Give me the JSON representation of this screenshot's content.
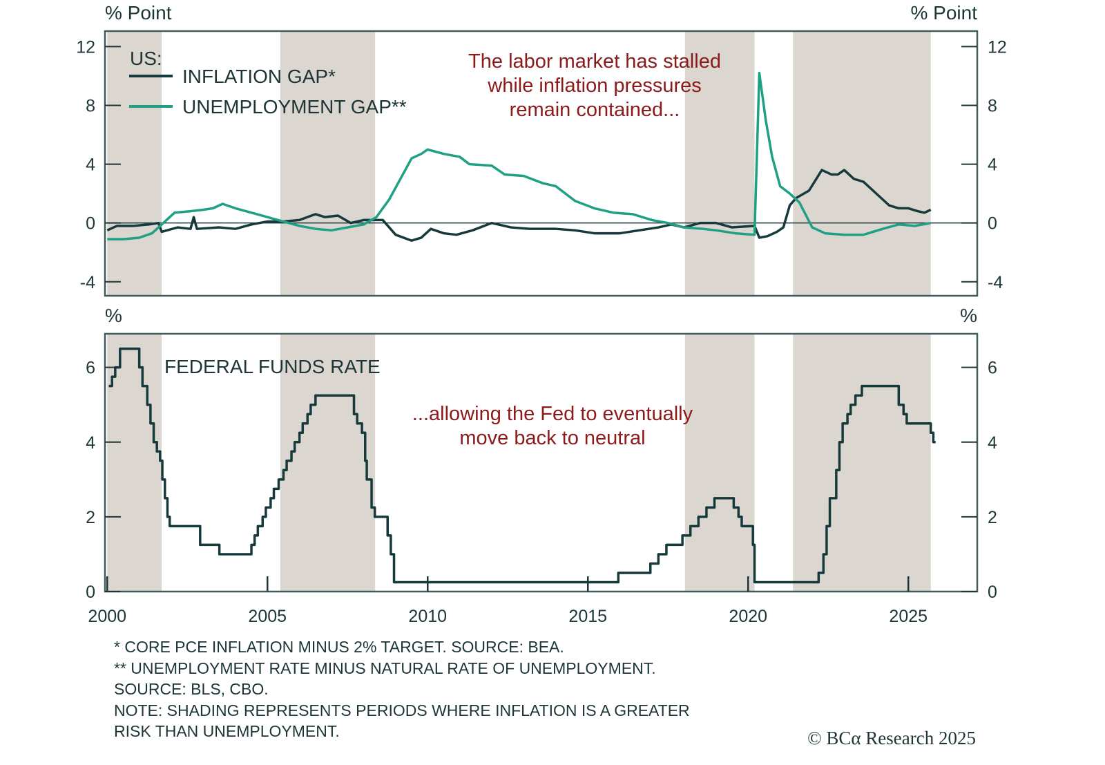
{
  "colors": {
    "inflation": "#163a3b",
    "unemployment": "#1fa084",
    "shade": "#dbd6cf",
    "annotation": "#8b1a1a",
    "frame": "#3f5b5b"
  },
  "chart_data": [
    {
      "type": "line",
      "panel": "top",
      "left_unit": "% Point",
      "right_unit": "% Point",
      "ylim": [
        -4.95,
        13.05
      ],
      "xlim": [
        1999.93,
        2027.15
      ],
      "yticks": [
        12,
        8,
        4,
        0,
        -4
      ],
      "ytick_labels": [
        "12",
        "8",
        "4",
        "0",
        "-4"
      ],
      "legend_title": "US:",
      "legend_placement": "top-left",
      "annotation": [
        "The labor market has stalled",
        "while inflation pressures",
        "remain contained..."
      ],
      "shaded_periods": [
        [
          2000.0,
          2001.7
        ],
        [
          2005.4,
          2008.36
        ],
        [
          2018.03,
          2020.2
        ],
        [
          2021.4,
          2025.7
        ]
      ],
      "series": [
        {
          "name": "INFLATION GAP*",
          "color_key": "inflation",
          "points": [
            [
              2000,
              -0.5
            ],
            [
              2000.3,
              -0.2
            ],
            [
              2000.8,
              -0.2
            ],
            [
              2001.3,
              -0.1
            ],
            [
              2001.6,
              0.0
            ],
            [
              2001.7,
              -0.6
            ],
            [
              2002.2,
              -0.3
            ],
            [
              2002.6,
              -0.4
            ],
            [
              2002.7,
              0.4
            ],
            [
              2002.8,
              -0.4
            ],
            [
              2003.5,
              -0.3
            ],
            [
              2004,
              -0.4
            ],
            [
              2004.5,
              -0.1
            ],
            [
              2005,
              0.1
            ],
            [
              2005.5,
              0.1
            ],
            [
              2006,
              0.2
            ],
            [
              2006.5,
              0.6
            ],
            [
              2006.8,
              0.4
            ],
            [
              2007.2,
              0.5
            ],
            [
              2007.6,
              0.0
            ],
            [
              2008,
              0.2
            ],
            [
              2008.6,
              0.2
            ],
            [
              2009,
              -0.8
            ],
            [
              2009.5,
              -1.2
            ],
            [
              2009.8,
              -1.0
            ],
            [
              2010.1,
              -0.4
            ],
            [
              2010.5,
              -0.7
            ],
            [
              2010.9,
              -0.8
            ],
            [
              2011.4,
              -0.5
            ],
            [
              2012,
              0.0
            ],
            [
              2012.6,
              -0.3
            ],
            [
              2013.2,
              -0.4
            ],
            [
              2014,
              -0.4
            ],
            [
              2014.6,
              -0.5
            ],
            [
              2015.2,
              -0.7
            ],
            [
              2016,
              -0.7
            ],
            [
              2016.6,
              -0.5
            ],
            [
              2017.2,
              -0.3
            ],
            [
              2017.6,
              -0.1
            ],
            [
              2018,
              -0.3
            ],
            [
              2018.5,
              0.0
            ],
            [
              2019,
              0.0
            ],
            [
              2019.5,
              -0.3
            ],
            [
              2020.2,
              -0.2
            ],
            [
              2020.35,
              -1.0
            ],
            [
              2020.6,
              -0.9
            ],
            [
              2020.9,
              -0.6
            ],
            [
              2021.1,
              -0.3
            ],
            [
              2021.3,
              1.2
            ],
            [
              2021.5,
              1.7
            ],
            [
              2021.9,
              2.2
            ],
            [
              2022.3,
              3.6
            ],
            [
              2022.6,
              3.3
            ],
            [
              2022.8,
              3.3
            ],
            [
              2023.0,
              3.6
            ],
            [
              2023.3,
              3.0
            ],
            [
              2023.6,
              2.8
            ],
            [
              2024.0,
              2.0
            ],
            [
              2024.4,
              1.2
            ],
            [
              2024.7,
              1.0
            ],
            [
              2025.0,
              1.0
            ],
            [
              2025.3,
              0.8
            ],
            [
              2025.5,
              0.7
            ],
            [
              2025.7,
              0.9
            ]
          ]
        },
        {
          "name": "UNEMPLOYMENT GAP**",
          "color_key": "unemployment",
          "points": [
            [
              2000,
              -1.1
            ],
            [
              2000.5,
              -1.1
            ],
            [
              2001,
              -1.0
            ],
            [
              2001.4,
              -0.7
            ],
            [
              2001.8,
              0.1
            ],
            [
              2002.1,
              0.7
            ],
            [
              2002.6,
              0.8
            ],
            [
              2003,
              0.9
            ],
            [
              2003.3,
              1.0
            ],
            [
              2003.6,
              1.3
            ],
            [
              2004,
              1.0
            ],
            [
              2004.5,
              0.7
            ],
            [
              2005,
              0.4
            ],
            [
              2005.5,
              0.1
            ],
            [
              2006,
              -0.2
            ],
            [
              2006.5,
              -0.4
            ],
            [
              2007,
              -0.5
            ],
            [
              2007.5,
              -0.3
            ],
            [
              2008,
              -0.1
            ],
            [
              2008.4,
              0.4
            ],
            [
              2008.8,
              1.6
            ],
            [
              2009.2,
              3.2
            ],
            [
              2009.5,
              4.4
            ],
            [
              2009.8,
              4.7
            ],
            [
              2010.0,
              5.0
            ],
            [
              2010.5,
              4.7
            ],
            [
              2011,
              4.5
            ],
            [
              2011.3,
              4.0
            ],
            [
              2012,
              3.9
            ],
            [
              2012.4,
              3.3
            ],
            [
              2013,
              3.2
            ],
            [
              2013.6,
              2.7
            ],
            [
              2014,
              2.5
            ],
            [
              2014.6,
              1.5
            ],
            [
              2015.2,
              1.0
            ],
            [
              2015.8,
              0.7
            ],
            [
              2016.4,
              0.6
            ],
            [
              2017,
              0.2
            ],
            [
              2017.5,
              0.0
            ],
            [
              2018,
              -0.3
            ],
            [
              2018.6,
              -0.4
            ],
            [
              2019,
              -0.5
            ],
            [
              2019.6,
              -0.7
            ],
            [
              2020.2,
              -0.8
            ],
            [
              2020.35,
              10.2
            ],
            [
              2020.55,
              7.0
            ],
            [
              2020.75,
              4.5
            ],
            [
              2021.0,
              2.5
            ],
            [
              2021.3,
              2.0
            ],
            [
              2021.6,
              1.4
            ],
            [
              2022.0,
              -0.3
            ],
            [
              2022.4,
              -0.7
            ],
            [
              2023,
              -0.8
            ],
            [
              2023.6,
              -0.8
            ],
            [
              2024.2,
              -0.4
            ],
            [
              2024.7,
              -0.1
            ],
            [
              2025.2,
              -0.2
            ],
            [
              2025.7,
              0.0
            ]
          ]
        }
      ]
    },
    {
      "type": "line",
      "panel": "bottom",
      "left_unit": "%",
      "right_unit": "%",
      "ylim": [
        0,
        6.9
      ],
      "xlim": [
        1999.93,
        2027.15
      ],
      "yticks": [
        6,
        4,
        2,
        0
      ],
      "ytick_labels": [
        "6",
        "4",
        "2",
        "0"
      ],
      "xticks": [
        2000,
        2005,
        2010,
        2015,
        2020,
        2025
      ],
      "xtick_labels": [
        "2000",
        "2005",
        "2010",
        "2015",
        "2020",
        "2025"
      ],
      "annotation": [
        "...allowing the Fed to eventually",
        "move back to neutral"
      ],
      "shaded_periods": [
        [
          2000.0,
          2001.7
        ],
        [
          2005.4,
          2008.36
        ],
        [
          2018.03,
          2020.2
        ],
        [
          2021.4,
          2025.7
        ]
      ],
      "series": [
        {
          "name": "FEDERAL FUNDS RATE",
          "color_key": "inflation",
          "step": true,
          "points": [
            [
              2000.05,
              5.5
            ],
            [
              2000.15,
              5.75
            ],
            [
              2000.25,
              6.0
            ],
            [
              2000.4,
              6.5
            ],
            [
              2001.0,
              6.0
            ],
            [
              2001.1,
              5.5
            ],
            [
              2001.25,
              5.0
            ],
            [
              2001.35,
              4.5
            ],
            [
              2001.45,
              4.0
            ],
            [
              2001.55,
              3.75
            ],
            [
              2001.65,
              3.5
            ],
            [
              2001.72,
              3.0
            ],
            [
              2001.8,
              2.5
            ],
            [
              2001.88,
              2.0
            ],
            [
              2001.95,
              1.75
            ],
            [
              2002.9,
              1.25
            ],
            [
              2003.5,
              1.0
            ],
            [
              2004.5,
              1.25
            ],
            [
              2004.6,
              1.5
            ],
            [
              2004.7,
              1.75
            ],
            [
              2004.85,
              2.0
            ],
            [
              2004.95,
              2.25
            ],
            [
              2005.1,
              2.5
            ],
            [
              2005.2,
              2.75
            ],
            [
              2005.35,
              3.0
            ],
            [
              2005.5,
              3.25
            ],
            [
              2005.6,
              3.5
            ],
            [
              2005.75,
              3.75
            ],
            [
              2005.85,
              4.0
            ],
            [
              2006.0,
              4.25
            ],
            [
              2006.1,
              4.5
            ],
            [
              2006.25,
              4.75
            ],
            [
              2006.35,
              5.0
            ],
            [
              2006.5,
              5.25
            ],
            [
              2007.7,
              4.75
            ],
            [
              2007.8,
              4.5
            ],
            [
              2007.95,
              4.25
            ],
            [
              2008.05,
              3.5
            ],
            [
              2008.1,
              3.0
            ],
            [
              2008.25,
              2.25
            ],
            [
              2008.35,
              2.0
            ],
            [
              2008.75,
              1.5
            ],
            [
              2008.85,
              1.0
            ],
            [
              2008.95,
              0.25
            ],
            [
              2015.95,
              0.5
            ],
            [
              2016.95,
              0.75
            ],
            [
              2017.2,
              1.0
            ],
            [
              2017.45,
              1.25
            ],
            [
              2017.95,
              1.5
            ],
            [
              2018.2,
              1.75
            ],
            [
              2018.45,
              2.0
            ],
            [
              2018.7,
              2.25
            ],
            [
              2018.95,
              2.5
            ],
            [
              2019.55,
              2.25
            ],
            [
              2019.7,
              2.0
            ],
            [
              2019.8,
              1.75
            ],
            [
              2020.15,
              1.25
            ],
            [
              2020.2,
              0.25
            ],
            [
              2022.2,
              0.5
            ],
            [
              2022.35,
              1.0
            ],
            [
              2022.45,
              1.75
            ],
            [
              2022.55,
              2.5
            ],
            [
              2022.75,
              3.25
            ],
            [
              2022.85,
              4.0
            ],
            [
              2022.95,
              4.5
            ],
            [
              2023.1,
              4.75
            ],
            [
              2023.2,
              5.0
            ],
            [
              2023.35,
              5.25
            ],
            [
              2023.55,
              5.5
            ],
            [
              2024.7,
              5.0
            ],
            [
              2024.85,
              4.75
            ],
            [
              2024.95,
              4.5
            ],
            [
              2025.7,
              4.25
            ],
            [
              2025.78,
              4.0
            ],
            [
              2025.85,
              4.0
            ]
          ]
        }
      ]
    }
  ],
  "footnotes": [
    "* CORE PCE INFLATION MINUS 2% TARGET. SOURCE: BEA.",
    "** UNEMPLOYMENT RATE MINUS NATURAL RATE OF UNEMPLOYMENT.",
    "SOURCE: BLS, CBO.",
    "NOTE: SHADING REPRESENTS PERIODS WHERE INFLATION IS A GREATER",
    "RISK THAN UNEMPLOYMENT."
  ],
  "copyright": "© BCα Research 2025"
}
